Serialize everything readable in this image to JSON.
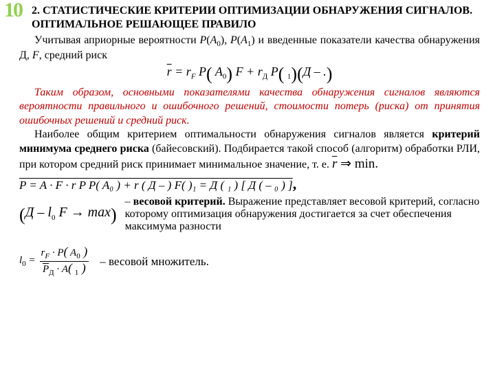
{
  "slide_number": "10",
  "heading": "2. СТАТИСТИЧЕСКИЕ КРИТЕРИИ ОПТИМИЗАЦИИ ОБНАРУЖЕНИЯ СИГНАЛОВ. ОПТИМАЛЬНОЕ РЕШАЮЩЕЕ ПРАВИЛО",
  "p1_a": "Учитывая априорные вероятности ",
  "p1_pa0": "Р",
  "p1_b": "(",
  "p1_a0": "А",
  "p1_sub0": "0",
  "p1_c": "), ",
  "p1_pa1": "Р",
  "p1_d": "(",
  "p1_a1": "А",
  "p1_sub1": "1",
  "p1_e": ") и введенные показатели качества обнаружения Д, ",
  "p1_f": "F",
  "p1_g": ", средний риск",
  "f1_lhs_r": "r",
  "f1_eq": " = ",
  "f1_rF": "r",
  "f1_subF": "F",
  "f1_t2": " P",
  "f1_po1": "(",
  "f1_A0": " A",
  "f1_A0s": "0",
  "f1_pc1": " )",
  "f1_t3": " F + r",
  "f1_subD": "Д",
  "f1_t4": " P",
  "f1_po2": "(",
  "f1_blank": "   ",
  "f1_one": "1",
  "f1_pc2": " )",
  "f1_po3": "(",
  "f1_D": "Д",
  "f1_dash": " – .",
  "f1_pc3": " )",
  "p_red": "Таким образом, основными показателями качества обнаружения сигналов являются вероятности правильного и ошибочного решений, стоимости потерь (риска) от принятия ошибочных решений и средний риск.",
  "p3_a": "Наиболее общим критерием оптимальности обнаружения сигналов является ",
  "p3_b": "критерий минимума среднего риска",
  "p3_c": " (байесовский). Подбирается такой способ (алгоритм) обработки РЛИ, при котором средний риск принимает минимальное значение, т. е. ",
  "f2_r": "r",
  "f2_arrow": " ⇒ min.",
  "f3": "P = A · F · r P P( A₀ ) + r   ( Д –    )  F(    )₁ =   Д (  ₁ ) [ Д (   –  ₀   ) ]",
  "f3_comma": ",",
  "maxlead_o": "(",
  "maxlead_a": "Д – l",
  "maxlead_sub0": "0",
  "maxlead_b": " F → max",
  "maxlead_c": ")",
  "maxbody_dash": "– ",
  "maxbody_bold": "весовой критерий.",
  "maxbody_rest": " Выражение представляет весовой критерий, согласно которому оптимизация обнаружения достигается за счет обеспечения максимума разности",
  "l0_l": "l",
  "l0_sub": "0",
  "l0_eq": " = ",
  "l0_num_a": "r",
  "l0_num_subF": "F",
  "l0_num_b": " · P",
  "l0_num_c": "(",
  "l0_num_d": " A",
  "l0_num_sub0": "0",
  "l0_num_e": " )",
  "l0_den_a": "P",
  "l0_den_sub": "Д",
  "l0_den_b": " · A",
  "l0_den_c": "(",
  "l0_den_blank": "  ",
  "l0_den_sub1": "1",
  "l0_den_e": " )",
  "l0_text": "– весовой множитель."
}
